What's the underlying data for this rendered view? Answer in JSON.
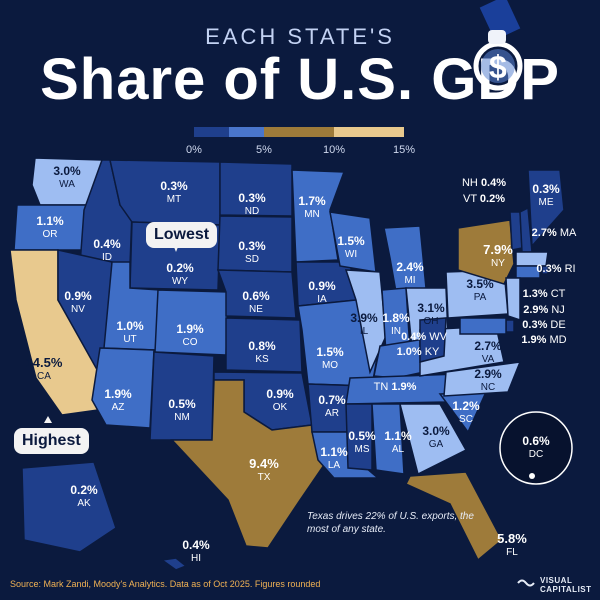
{
  "title": {
    "kicker": "EACH STATE'S",
    "headline": "Share of U.S. GDP"
  },
  "legend": {
    "labels": [
      "0%",
      "5%",
      "10%",
      "15%"
    ],
    "colors": {
      "dark_blue": "#1f3f8c",
      "mid_blue": "#3f6ec6",
      "light_blue": "#9ebdf2",
      "dark_gold": "#9e7b3a",
      "light_gold": "#e8c98e"
    }
  },
  "callouts": {
    "lowest": "Lowest",
    "highest": "Highest"
  },
  "note": "Texas drives 22% of U.S. exports, the most of any state.",
  "footer": "Source: Mark Zandi, Moody's Analytics. Data as of Oct 2025. Figures rounded",
  "brand": {
    "line1": "VISUAL",
    "line2": "CAPITALIST"
  },
  "states": [
    {
      "abbr": "WA",
      "value": "3.0%"
    },
    {
      "abbr": "OR",
      "value": "1.1%"
    },
    {
      "abbr": "CA",
      "value": "14.5%"
    },
    {
      "abbr": "ID",
      "value": "0.4%"
    },
    {
      "abbr": "NV",
      "value": "0.9%"
    },
    {
      "abbr": "MT",
      "value": "0.3%"
    },
    {
      "abbr": "WY",
      "value": "0.2%"
    },
    {
      "abbr": "UT",
      "value": "1.0%"
    },
    {
      "abbr": "AZ",
      "value": "1.9%"
    },
    {
      "abbr": "CO",
      "value": "1.9%"
    },
    {
      "abbr": "NM",
      "value": "0.5%"
    },
    {
      "abbr": "ND",
      "value": "0.3%"
    },
    {
      "abbr": "SD",
      "value": "0.3%"
    },
    {
      "abbr": "NE",
      "value": "0.6%"
    },
    {
      "abbr": "KS",
      "value": "0.8%"
    },
    {
      "abbr": "OK",
      "value": "0.9%"
    },
    {
      "abbr": "TX",
      "value": "9.4%"
    },
    {
      "abbr": "MN",
      "value": "1.7%"
    },
    {
      "abbr": "IA",
      "value": "0.9%"
    },
    {
      "abbr": "MO",
      "value": "1.5%"
    },
    {
      "abbr": "AR",
      "value": "0.7%"
    },
    {
      "abbr": "LA",
      "value": "1.1%"
    },
    {
      "abbr": "WI",
      "value": "1.5%"
    },
    {
      "abbr": "IL",
      "value": "3.9%"
    },
    {
      "abbr": "MI",
      "value": "2.4%"
    },
    {
      "abbr": "IN",
      "value": "1.8%"
    },
    {
      "abbr": "OH",
      "value": "3.1%"
    },
    {
      "abbr": "KY",
      "value": "1.0%"
    },
    {
      "abbr": "TN",
      "value": "1.9%"
    },
    {
      "abbr": "MS",
      "value": "0.5%"
    },
    {
      "abbr": "AL",
      "value": "1.1%"
    },
    {
      "abbr": "GA",
      "value": "3.0%"
    },
    {
      "abbr": "FL",
      "value": "5.8%"
    },
    {
      "abbr": "SC",
      "value": "1.2%"
    },
    {
      "abbr": "NC",
      "value": "2.9%"
    },
    {
      "abbr": "VA",
      "value": "2.7%"
    },
    {
      "abbr": "WV",
      "value": "0.4%"
    },
    {
      "abbr": "PA",
      "value": "3.5%"
    },
    {
      "abbr": "NY",
      "value": "7.9%"
    },
    {
      "abbr": "VT",
      "value": "0.2%"
    },
    {
      "abbr": "NH",
      "value": "0.4%"
    },
    {
      "abbr": "ME",
      "value": "0.3%"
    },
    {
      "abbr": "MA",
      "value": "2.7%"
    },
    {
      "abbr": "RI",
      "value": "0.3%"
    },
    {
      "abbr": "CT",
      "value": "1.3%"
    },
    {
      "abbr": "NJ",
      "value": "2.9%"
    },
    {
      "abbr": "DE",
      "value": "0.3%"
    },
    {
      "abbr": "MD",
      "value": "1.9%"
    },
    {
      "abbr": "DC",
      "value": "0.6%"
    },
    {
      "abbr": "AK",
      "value": "0.2%"
    },
    {
      "abbr": "HI",
      "value": "0.4%"
    }
  ]
}
